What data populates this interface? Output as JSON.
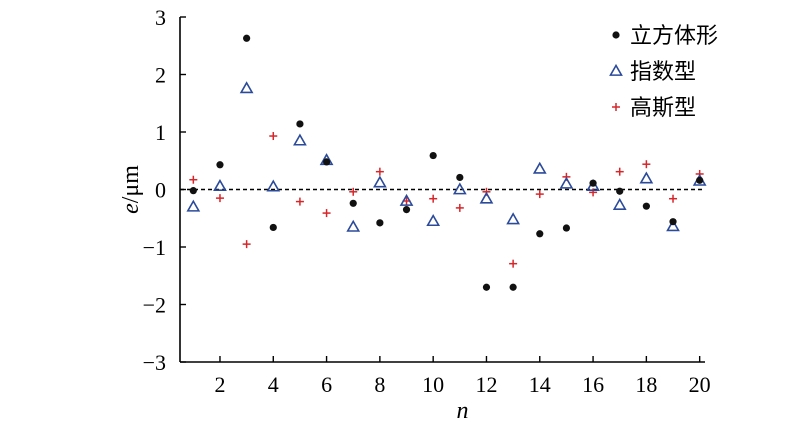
{
  "chart_data": {
    "type": "scatter",
    "xlabel": "n",
    "ylabel": "e/μm",
    "ylabel_parts": {
      "var": "e",
      "unit": "/μm"
    },
    "xlim": [
      0.5,
      20.2
    ],
    "ylim": [
      -3,
      3
    ],
    "x_ticks": [
      2,
      4,
      6,
      8,
      10,
      12,
      14,
      16,
      18,
      20
    ],
    "y_ticks": [
      -3,
      -2,
      -1,
      0,
      1,
      2,
      3
    ],
    "x_tick_labels": [
      "2",
      "4",
      "6",
      "8",
      "10",
      "12",
      "14",
      "16",
      "18",
      "20"
    ],
    "y_tick_labels": [
      "−3",
      "−2",
      "−1",
      "0",
      "1",
      "2",
      "3"
    ],
    "reference_line": {
      "y": 0,
      "style": "dashed"
    },
    "legend_position": "top-right",
    "x": [
      1,
      2,
      3,
      4,
      5,
      6,
      7,
      8,
      9,
      10,
      11,
      12,
      13,
      14,
      15,
      16,
      17,
      18,
      19,
      20
    ],
    "series": [
      {
        "name": "立方体形",
        "marker": "circle",
        "color": "#111111",
        "values": [
          -0.02,
          0.43,
          2.63,
          -0.66,
          1.14,
          0.48,
          -0.24,
          -0.58,
          -0.35,
          0.59,
          0.21,
          -1.7,
          -1.7,
          -0.77,
          -0.67,
          0.11,
          -0.03,
          -0.29,
          -0.56,
          0.16
        ]
      },
      {
        "name": "指数型",
        "marker": "triangle",
        "color": "#2b4a9a",
        "values": [
          -0.3,
          0.06,
          1.76,
          0.05,
          0.85,
          0.51,
          -0.65,
          0.12,
          -0.2,
          -0.55,
          0.0,
          -0.16,
          -0.52,
          0.36,
          0.1,
          0.06,
          -0.27,
          0.19,
          -0.64,
          0.15
        ]
      },
      {
        "name": "高斯型",
        "marker": "plus",
        "color": "#d6262a",
        "values": [
          0.17,
          -0.15,
          -0.95,
          0.93,
          -0.21,
          -0.41,
          -0.04,
          0.31,
          -0.2,
          -0.16,
          -0.32,
          -0.04,
          -1.29,
          -0.08,
          0.22,
          -0.05,
          0.31,
          0.44,
          -0.16,
          0.27
        ]
      }
    ]
  }
}
